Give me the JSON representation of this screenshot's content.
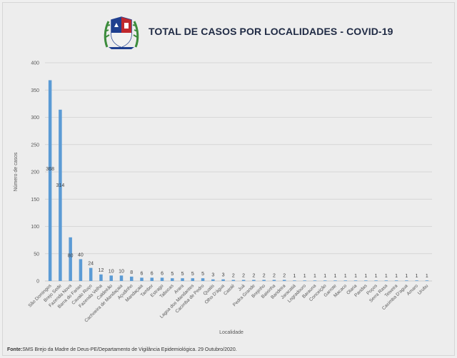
{
  "header": {
    "title": "TOTAL DE CASOS POR LOCALIDADES - COVID-19"
  },
  "footer": {
    "label": "Fonte:",
    "text": "SMS Brejo da Madre de Deus-PE/Departamento de Vigilância Epidemiológica. 29 Outubro/2020."
  },
  "colors": {
    "bar": "#5b9bd5",
    "grid": "#d0d0d0",
    "text": "#595959",
    "label": "#404040"
  },
  "chart_data": {
    "type": "bar",
    "title": "TOTAL DE CASOS POR LOCALIDADES - COVID-19",
    "xlabel": "Localidade",
    "ylabel": "Número de casos",
    "ylim": [
      0,
      400
    ],
    "yticks": [
      0,
      50,
      100,
      150,
      200,
      250,
      300,
      350,
      400
    ],
    "grid": true,
    "legend": "none",
    "categories": [
      "São Domingos",
      "Brejo Sede",
      "Fazenda Nova",
      "Barra do Farias",
      "Cavalo Ruço",
      "Fazenda Velha",
      "Caldeirão",
      "Cachoeira de Mandaçaia",
      "Açudinho",
      "Mandaçaia",
      "Tambor",
      "Estrago",
      "Tabocas",
      "Arara",
      "Lagoa dos Mandantes",
      "Cacimba de Pedro",
      "Quatis",
      "Olho D'água",
      "Catolé",
      "Juá",
      "Pedra Grande",
      "Brejinho",
      "Baixinha",
      "Bandeira",
      "Jaracatiá",
      "Logradouro",
      "Barauna",
      "Conceição",
      "Garrote",
      "Macaco",
      "Olaria",
      "Paridas",
      "Poços",
      "Serra Rasa",
      "Teixeira",
      "Cacimba D'agua",
      "Amaro",
      "Urubu"
    ],
    "values": [
      368,
      314,
      80,
      40,
      24,
      12,
      10,
      10,
      8,
      6,
      6,
      6,
      5,
      5,
      5,
      5,
      3,
      3,
      2,
      2,
      2,
      2,
      2,
      2,
      1,
      1,
      1,
      1,
      1,
      1,
      1,
      1,
      1,
      1,
      1,
      1,
      1,
      1
    ]
  }
}
